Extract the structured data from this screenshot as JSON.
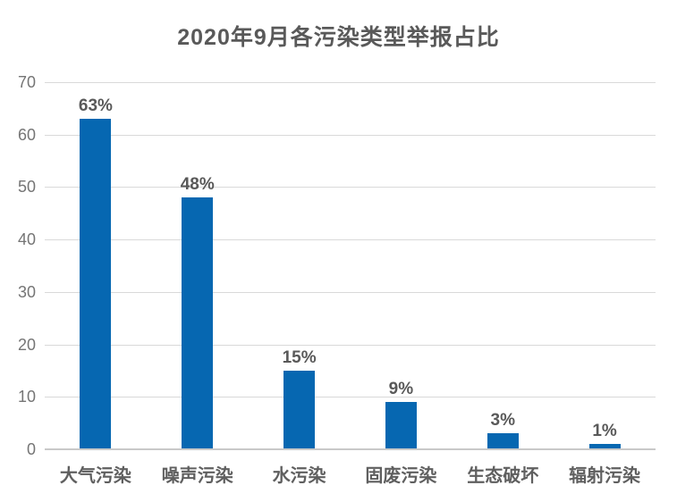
{
  "chart_data": {
    "type": "bar",
    "title": "2020年9月各污染类型举报占比",
    "categories": [
      "大气污染",
      "噪声污染",
      "水污染",
      "固废污染",
      "生态破坏",
      "辐射污染"
    ],
    "values": [
      63,
      48,
      15,
      9,
      3,
      1
    ],
    "data_labels": [
      "63%",
      "48%",
      "15%",
      "9%",
      "3%",
      "1%"
    ],
    "unit": "%",
    "xlabel": "",
    "ylabel": "",
    "ylim": [
      0,
      70
    ],
    "yticks": [
      0,
      10,
      20,
      30,
      40,
      50,
      60,
      70
    ],
    "grid": "horizontal",
    "legend": "none",
    "colors": {
      "background": "#FFFFFF",
      "bar": "#0667B1",
      "gridline": "#D9D9D9",
      "axis_line": "#C9C9C9",
      "title_text": "#595959",
      "data_label_text": "#595959",
      "x_tick_text": "#5F5F5F",
      "y_tick_text": "#757575"
    }
  }
}
